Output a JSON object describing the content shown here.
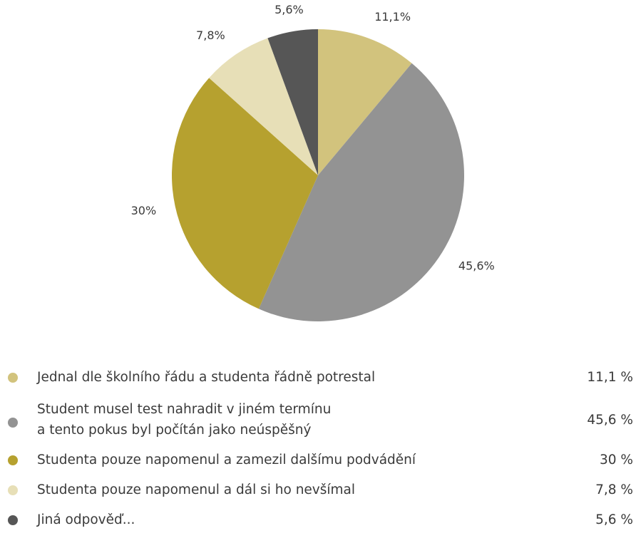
{
  "chart_data": {
    "type": "pie",
    "slices": [
      {
        "label_lines": [
          "Jednal dle školního řádu a studenta řádně potrestal"
        ],
        "value": 11.1,
        "pie_label": "11,1%",
        "legend_value": "11,1 %",
        "color": "#d2c37d"
      },
      {
        "label_lines": [
          "Student musel test nahradit v jiném termínu",
          "a tento pokus byl počítán jako neúspěšný"
        ],
        "value": 45.6,
        "pie_label": "45,6%",
        "legend_value": "45,6 %",
        "color": "#939393"
      },
      {
        "label_lines": [
          "Studenta pouze napomenul a zamezil dalšímu podvádění"
        ],
        "value": 30,
        "pie_label": "30%",
        "legend_value": "30 %",
        "color": "#b6a12f"
      },
      {
        "label_lines": [
          "Studenta pouze napomenul a dál si ho nevšímal"
        ],
        "value": 7.8,
        "pie_label": "7,8%",
        "legend_value": "7,8 %",
        "color": "#e7dfb7"
      },
      {
        "label_lines": [
          "Jiná odpověď..."
        ],
        "value": 5.6,
        "pie_label": "5,6%",
        "legend_value": "5,6 %",
        "color": "#565656"
      }
    ],
    "start_angle": "12 o'clock",
    "direction": "clockwise",
    "legend_position": "bottom"
  }
}
